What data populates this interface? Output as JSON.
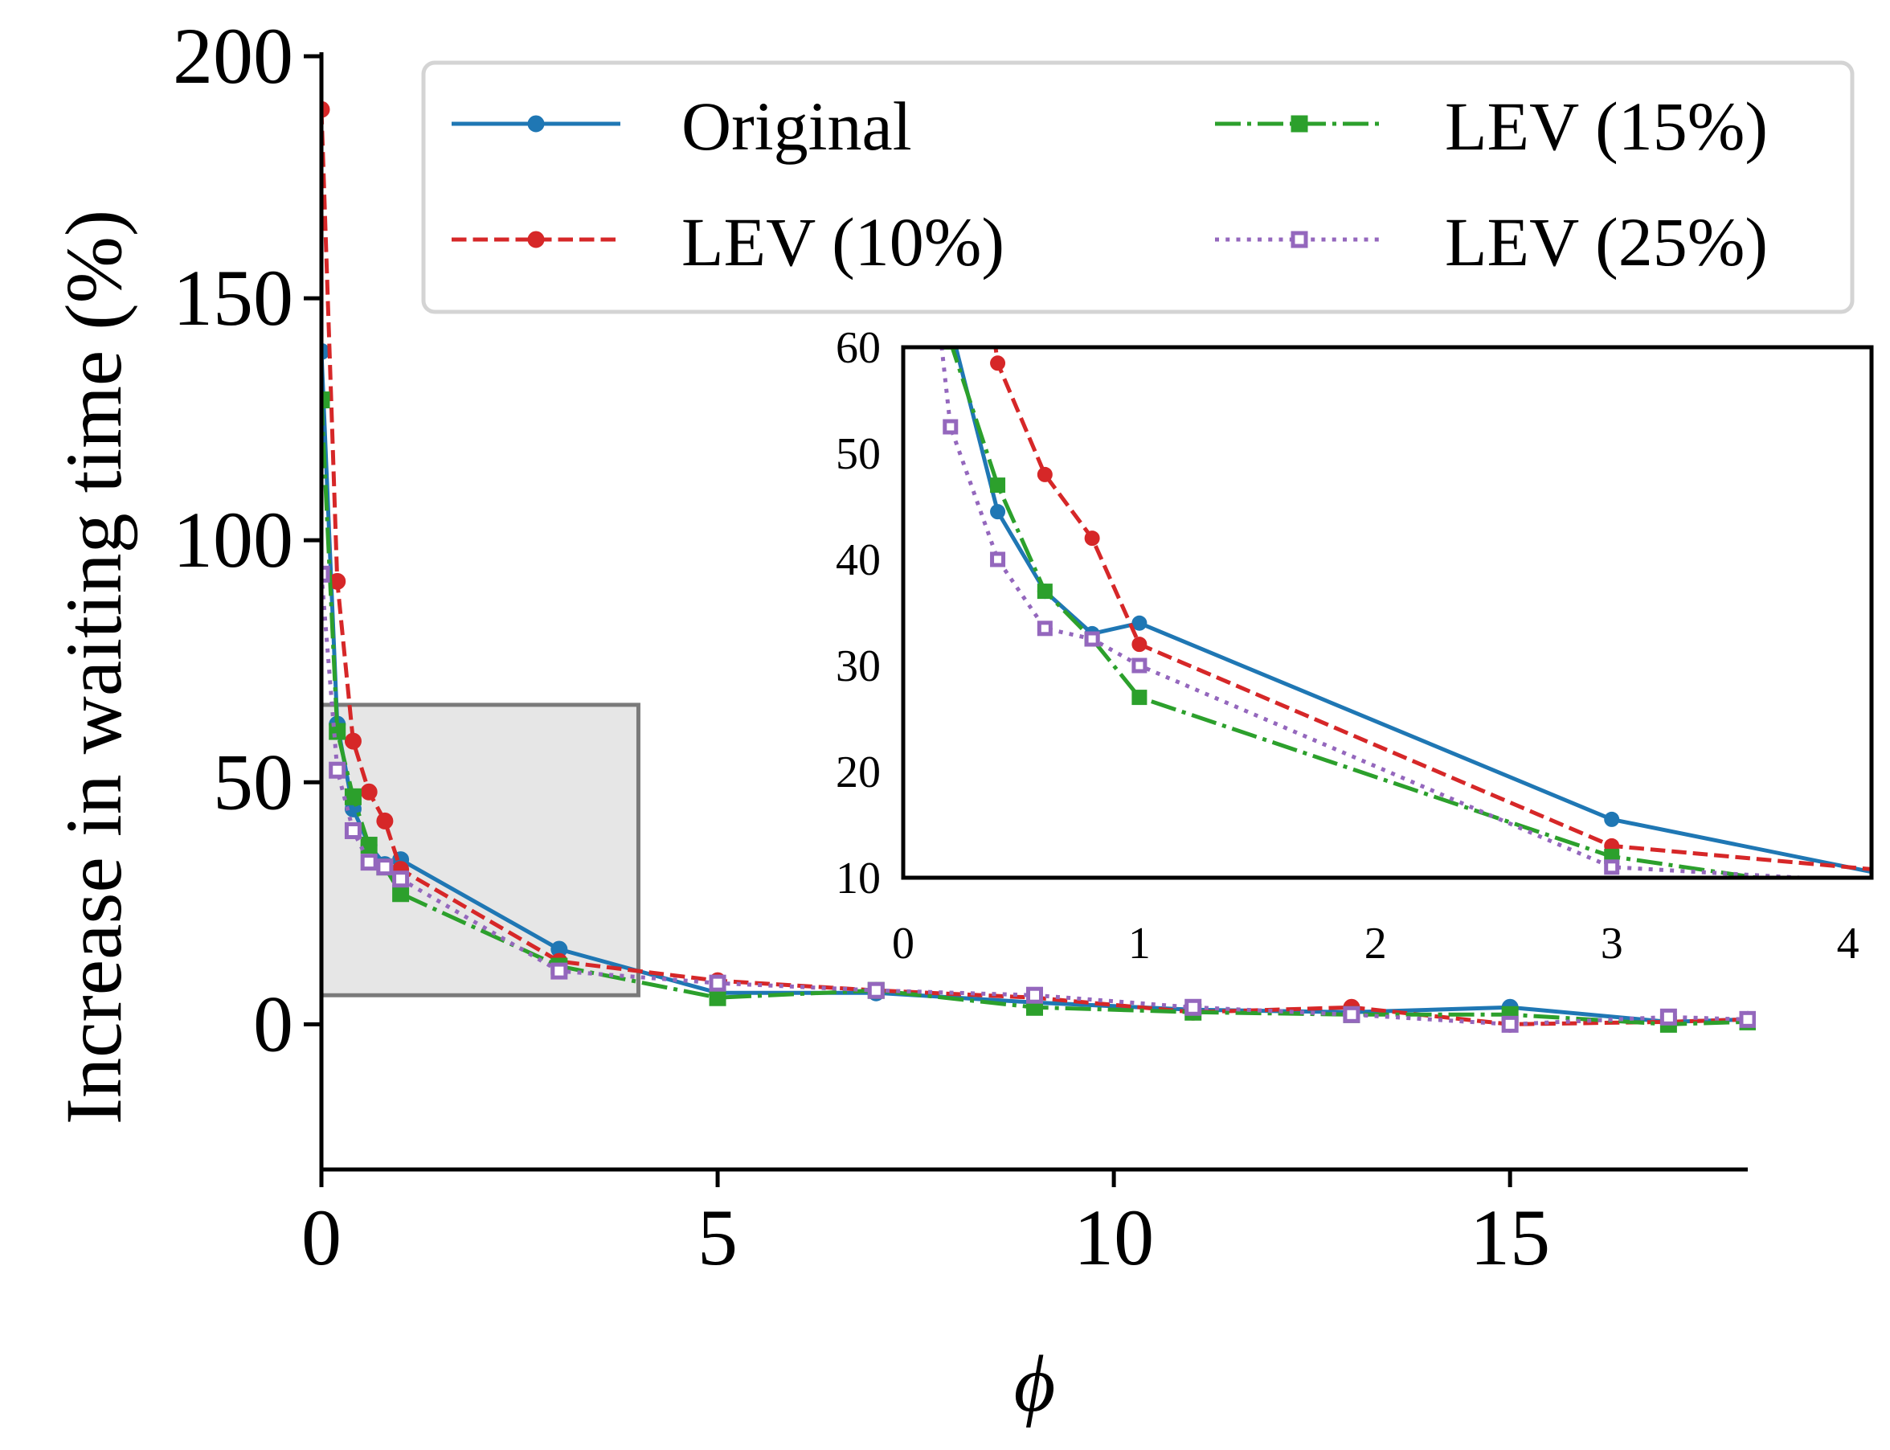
{
  "chart_data": {
    "type": "line",
    "xlabel": "ϕ",
    "ylabel": "Increase in waiting time (%)",
    "xlim": [
      0,
      18
    ],
    "ylim": [
      -30,
      200
    ],
    "xticks": [
      "0",
      "5",
      "10",
      "15"
    ],
    "yticks": [
      "0",
      "50",
      "100",
      "150",
      "200"
    ],
    "legend_position": "top-right",
    "series": [
      {
        "name": "Original",
        "color": "#1f77b4",
        "style": "solid",
        "marker": "circle-filled",
        "x": [
          0,
          0.2,
          0.4,
          0.6,
          0.8,
          1,
          3,
          5,
          7,
          9,
          11,
          13,
          15,
          17,
          18
        ],
        "y": [
          139,
          62,
          44.5,
          37,
          33,
          34,
          15.5,
          6.5,
          6.5,
          4.5,
          3,
          2.5,
          3.5,
          0.5,
          1
        ]
      },
      {
        "name": "LEV (10%)",
        "color": "#d62728",
        "style": "dashed",
        "marker": "circle-filled",
        "x": [
          0,
          0.2,
          0.4,
          0.6,
          0.8,
          1,
          3,
          5,
          7,
          9,
          11,
          13,
          15,
          17,
          18
        ],
        "y": [
          189,
          91.5,
          58.5,
          48,
          42,
          32,
          13,
          9,
          7,
          5.5,
          2.5,
          3.5,
          0,
          0.5,
          1
        ]
      },
      {
        "name": "LEV (15%)",
        "color": "#2ca02c",
        "style": "dashdot",
        "marker": "square-filled",
        "x": [
          0,
          0.2,
          0.4,
          0.6,
          0.8,
          1,
          3,
          5,
          7,
          9,
          11,
          13,
          15,
          17,
          18
        ],
        "y": [
          129,
          60.5,
          47,
          37,
          32.5,
          27,
          12,
          5.5,
          7,
          3.5,
          2.5,
          2,
          2,
          0,
          0.5
        ]
      },
      {
        "name": "LEV (25%)",
        "color": "#9467bd",
        "style": "dotted",
        "marker": "square-open",
        "x": [
          0,
          0.2,
          0.4,
          0.6,
          0.8,
          1,
          3,
          5,
          7,
          9,
          11,
          13,
          15,
          17,
          18
        ],
        "y": [
          93,
          52.5,
          40,
          33.5,
          32.5,
          30,
          11,
          8.5,
          7,
          6,
          3.5,
          2,
          0,
          1.5,
          1
        ]
      }
    ],
    "zoom_region": {
      "x": [
        0,
        4
      ],
      "y": [
        6,
        66
      ]
    },
    "inset": {
      "xlim": [
        0,
        4.1
      ],
      "ylim": [
        10,
        60
      ],
      "xticks": [
        "0",
        "1",
        "2",
        "3",
        "4"
      ],
      "yticks": [
        "10",
        "20",
        "30",
        "40",
        "50",
        "60"
      ]
    }
  }
}
